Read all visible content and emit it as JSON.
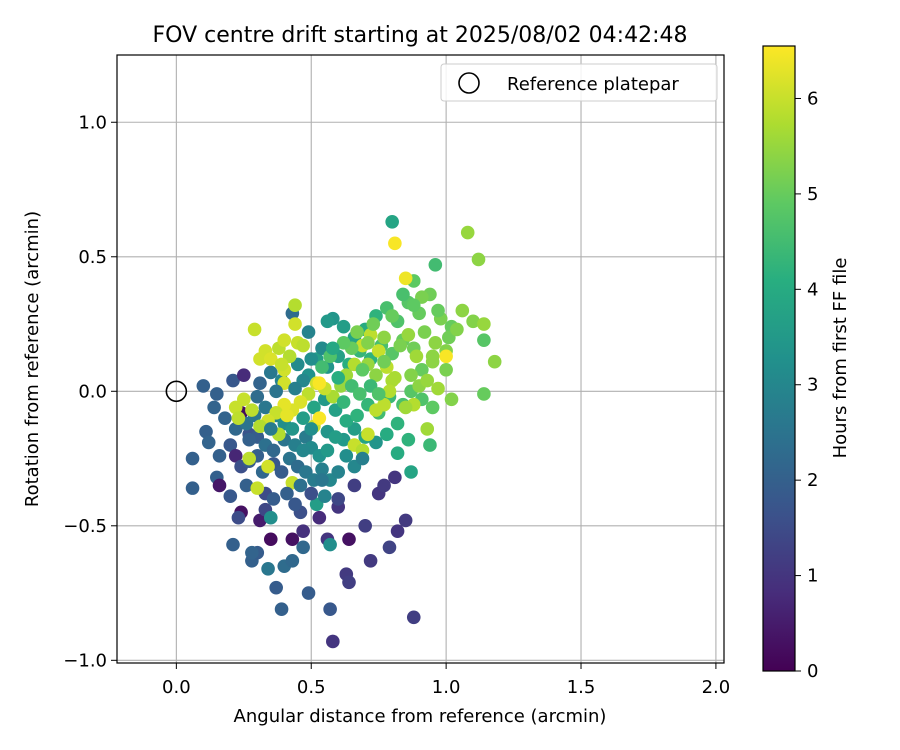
{
  "chart_data": {
    "type": "scatter",
    "title": "FOV centre drift starting at 2025/08/02 04:42:48",
    "xlabel": "Angular distance from reference (arcmin)",
    "ylabel": "Rotation from reference (arcmin)",
    "xlim": [
      -0.22,
      2.03
    ],
    "ylim": [
      -1.01,
      1.25
    ],
    "xticks": [
      0.0,
      0.5,
      1.0,
      1.5,
      2.0
    ],
    "xtick_labels": [
      "0.0",
      "0.5",
      "1.0",
      "1.5",
      "2.0"
    ],
    "yticks": [
      -1.0,
      -0.5,
      0.0,
      0.5,
      1.0
    ],
    "ytick_labels": [
      "−1.0",
      "−0.5",
      "0.0",
      "0.5",
      "1.0"
    ],
    "grid": true,
    "legend": {
      "placement": "top-right",
      "entries": [
        "Reference platepar"
      ]
    },
    "reference_point": {
      "x": 0.0,
      "y": 0.0
    },
    "colorbar": {
      "label": "Hours from first FF file",
      "range": [
        0,
        6.55
      ],
      "ticks": [
        0,
        1,
        2,
        3,
        4,
        5,
        6
      ],
      "tick_labels": [
        "0",
        "1",
        "2",
        "3",
        "4",
        "5",
        "6"
      ],
      "colormap": "viridis"
    },
    "points": [
      [
        0.24,
        -0.08,
        0.2
      ],
      [
        0.24,
        -0.45,
        0.3
      ],
      [
        0.23,
        -0.47,
        1.5
      ],
      [
        0.43,
        -0.55,
        0.3
      ],
      [
        0.35,
        -0.55,
        0.2
      ],
      [
        0.31,
        -0.48,
        0.5
      ],
      [
        0.58,
        -0.93,
        1.0
      ],
      [
        0.88,
        -0.84,
        1.2
      ],
      [
        0.57,
        -0.81,
        1.8
      ],
      [
        0.49,
        -0.75,
        1.9
      ],
      [
        0.39,
        -0.81,
        2.0
      ],
      [
        0.63,
        -0.68,
        1.1
      ],
      [
        0.64,
        -0.71,
        1.2
      ],
      [
        0.72,
        -0.63,
        1.1
      ],
      [
        0.79,
        -0.58,
        1.3
      ],
      [
        0.82,
        -0.52,
        1.0
      ],
      [
        0.85,
        -0.48,
        1.1
      ],
      [
        0.56,
        -0.55,
        1.0
      ],
      [
        0.64,
        -0.55,
        0.3
      ],
      [
        0.7,
        -0.5,
        1.2
      ],
      [
        0.47,
        -0.52,
        0.9
      ],
      [
        0.53,
        -0.47,
        0.8
      ],
      [
        0.6,
        -0.43,
        1.0
      ],
      [
        0.75,
        -0.38,
        1.0
      ],
      [
        0.77,
        -0.35,
        1.1
      ],
      [
        0.81,
        -0.32,
        1.0
      ],
      [
        0.87,
        -0.3,
        3.8
      ],
      [
        0.82,
        -0.23,
        4.0
      ],
      [
        0.86,
        -0.18,
        4.2
      ],
      [
        0.94,
        -0.2,
        4.4
      ],
      [
        0.21,
        -0.57,
        2.0
      ],
      [
        0.28,
        -0.63,
        2.0
      ],
      [
        0.3,
        -0.6,
        1.9
      ],
      [
        0.34,
        -0.66,
        2.6
      ],
      [
        0.4,
        -0.65,
        2.3
      ],
      [
        0.43,
        -0.63,
        2.2
      ],
      [
        0.47,
        -0.58,
        2.2
      ],
      [
        0.57,
        -0.57,
        3.2
      ],
      [
        0.37,
        -0.73,
        1.9
      ],
      [
        0.28,
        -0.6,
        2.1
      ],
      [
        0.06,
        -0.36,
        2.0
      ],
      [
        0.06,
        -0.25,
        2.0
      ],
      [
        0.15,
        -0.32,
        2.0
      ],
      [
        0.16,
        -0.35,
        0.4
      ],
      [
        0.2,
        -0.39,
        1.8
      ],
      [
        0.26,
        -0.35,
        2.0
      ],
      [
        0.33,
        -0.38,
        1.5
      ],
      [
        0.33,
        -0.44,
        1.4
      ],
      [
        0.35,
        -0.47,
        3.2
      ],
      [
        0.46,
        -0.45,
        1.6
      ],
      [
        0.52,
        -0.42,
        3.6
      ],
      [
        0.55,
        -0.39,
        2.9
      ],
      [
        0.6,
        -0.4,
        1.4
      ],
      [
        0.66,
        -0.35,
        1.2
      ],
      [
        0.11,
        -0.15,
        2.0
      ],
      [
        0.12,
        -0.19,
        2.1
      ],
      [
        0.16,
        -0.24,
        2.0
      ],
      [
        0.2,
        -0.2,
        1.8
      ],
      [
        0.22,
        -0.24,
        0.7
      ],
      [
        0.24,
        -0.28,
        1.6
      ],
      [
        0.27,
        -0.26,
        1.9
      ],
      [
        0.3,
        -0.24,
        2.0
      ],
      [
        0.32,
        -0.3,
        2.2
      ],
      [
        0.36,
        -0.27,
        1.8
      ],
      [
        0.39,
        -0.3,
        1.9
      ],
      [
        0.42,
        -0.25,
        2.5
      ],
      [
        0.45,
        -0.28,
        2.3
      ],
      [
        0.48,
        -0.3,
        2.6
      ],
      [
        0.51,
        -0.33,
        2.7
      ],
      [
        0.54,
        -0.29,
        2.8
      ],
      [
        0.57,
        -0.33,
        3.0
      ],
      [
        0.6,
        -0.3,
        2.9
      ],
      [
        0.27,
        -0.16,
        1.7
      ],
      [
        0.3,
        -0.17,
        1.9
      ],
      [
        0.33,
        -0.2,
        2.4
      ],
      [
        0.36,
        -0.22,
        2.2
      ],
      [
        0.4,
        -0.18,
        2.5
      ],
      [
        0.44,
        -0.2,
        2.8
      ],
      [
        0.48,
        -0.17,
        2.7
      ],
      [
        0.5,
        -0.21,
        3.1
      ],
      [
        0.53,
        -0.24,
        3.3
      ],
      [
        0.56,
        -0.22,
        3.5
      ],
      [
        0.62,
        -0.18,
        3.5
      ],
      [
        0.66,
        -0.14,
        3.6
      ],
      [
        0.7,
        -0.17,
        3.8
      ],
      [
        0.74,
        -0.19,
        3.4
      ],
      [
        0.78,
        -0.16,
        4.0
      ],
      [
        0.82,
        -0.12,
        4.2
      ],
      [
        0.14,
        -0.06,
        2.1
      ],
      [
        0.18,
        -0.1,
        2.1
      ],
      [
        0.22,
        -0.14,
        2.2
      ],
      [
        0.26,
        -0.12,
        2.5
      ],
      [
        0.29,
        -0.09,
        2.6
      ],
      [
        0.33,
        -0.06,
        2.6
      ],
      [
        0.37,
        -0.09,
        2.9
      ],
      [
        0.4,
        -0.12,
        3.2
      ],
      [
        0.43,
        -0.14,
        3.4
      ],
      [
        0.47,
        -0.1,
        3.6
      ],
      [
        0.51,
        -0.06,
        3.8
      ],
      [
        0.55,
        -0.03,
        3.5
      ],
      [
        0.59,
        -0.07,
        3.7
      ],
      [
        0.63,
        -0.11,
        4.0
      ],
      [
        0.67,
        -0.09,
        4.2
      ],
      [
        0.71,
        -0.05,
        4.3
      ],
      [
        0.75,
        -0.08,
        4.5
      ],
      [
        0.79,
        -0.02,
        4.4
      ],
      [
        0.84,
        -0.05,
        4.6
      ],
      [
        0.87,
        0.0,
        4.8
      ],
      [
        0.91,
        -0.03,
        4.7
      ],
      [
        0.95,
        -0.06,
        4.9
      ],
      [
        0.1,
        0.02,
        2.0
      ],
      [
        0.15,
        -0.01,
        2.0
      ],
      [
        0.21,
        0.04,
        1.8
      ],
      [
        0.25,
        0.06,
        0.8
      ],
      [
        0.31,
        0.03,
        2.1
      ],
      [
        0.35,
        0.07,
        2.6
      ],
      [
        0.39,
        0.04,
        2.9
      ],
      [
        0.45,
        0.1,
        3.1
      ],
      [
        0.49,
        0.06,
        3.3
      ],
      [
        0.52,
        0.12,
        3.6
      ],
      [
        0.56,
        0.09,
        3.4
      ],
      [
        0.6,
        0.13,
        3.7
      ],
      [
        0.64,
        0.1,
        4.1
      ],
      [
        0.68,
        0.15,
        4.3
      ],
      [
        0.72,
        0.12,
        4.2
      ],
      [
        0.76,
        0.17,
        4.6
      ],
      [
        0.8,
        0.14,
        4.8
      ],
      [
        0.84,
        0.19,
        5.0
      ],
      [
        0.88,
        0.16,
        5.1
      ],
      [
        0.92,
        0.22,
        5.2
      ],
      [
        0.96,
        0.18,
        5.4
      ],
      [
        1.0,
        0.15,
        5.3
      ],
      [
        0.43,
        0.29,
        2.3
      ],
      [
        0.49,
        0.22,
        2.9
      ],
      [
        0.54,
        0.16,
        3.1
      ],
      [
        0.58,
        0.27,
        3.4
      ],
      [
        0.62,
        0.24,
        3.6
      ],
      [
        0.66,
        0.2,
        3.8
      ],
      [
        0.7,
        0.23,
        4.0
      ],
      [
        0.74,
        0.28,
        4.2
      ],
      [
        0.78,
        0.31,
        4.6
      ],
      [
        0.82,
        0.26,
        4.7
      ],
      [
        0.86,
        0.33,
        4.8
      ],
      [
        0.9,
        0.29,
        5.0
      ],
      [
        0.94,
        0.36,
        5.1
      ],
      [
        0.98,
        0.27,
        5.2
      ],
      [
        1.02,
        0.24,
        5.0
      ],
      [
        1.06,
        0.3,
        5.4
      ],
      [
        1.1,
        0.26,
        5.3
      ],
      [
        1.14,
        0.19,
        4.8
      ],
      [
        1.18,
        0.11,
        5.4
      ],
      [
        1.14,
        0.25,
        5.5
      ],
      [
        0.88,
        0.41,
        4.9
      ],
      [
        0.84,
        0.36,
        4.6
      ],
      [
        0.96,
        0.47,
        4.5
      ],
      [
        1.12,
        0.49,
        5.4
      ],
      [
        1.08,
        0.59,
        5.5
      ],
      [
        0.8,
        0.63,
        3.8
      ],
      [
        0.81,
        0.55,
        6.5
      ],
      [
        0.85,
        0.42,
        6.4
      ],
      [
        1.0,
        0.13,
        6.5
      ],
      [
        0.95,
        0.13,
        5.4
      ],
      [
        1.02,
        -0.03,
        5.3
      ],
      [
        1.0,
        0.08,
        5.2
      ],
      [
        0.91,
        0.08,
        5.0
      ],
      [
        0.95,
        0.11,
        5.4
      ],
      [
        1.14,
        -0.01,
        5.0
      ],
      [
        0.93,
        -0.14,
        5.6
      ],
      [
        0.88,
        -0.05,
        5.8
      ],
      [
        0.8,
        0.04,
        5.7
      ],
      [
        0.78,
        0.09,
        5.9
      ],
      [
        0.75,
        0.15,
        6.0
      ],
      [
        0.72,
        0.21,
        5.9
      ],
      [
        0.69,
        0.17,
        6.0
      ],
      [
        0.66,
        0.1,
        5.8
      ],
      [
        0.63,
        0.06,
        5.6
      ],
      [
        0.61,
        0.02,
        5.5
      ],
      [
        0.58,
        -0.02,
        5.7
      ],
      [
        0.55,
        0.01,
        6.0
      ],
      [
        0.52,
        0.03,
        6.1
      ],
      [
        0.49,
        -0.01,
        5.9
      ],
      [
        0.46,
        -0.04,
        6.2
      ],
      [
        0.43,
        -0.07,
        6.2
      ],
      [
        0.4,
        -0.05,
        6.3
      ],
      [
        0.37,
        -0.08,
        6.0
      ],
      [
        0.34,
        -0.11,
        6.1
      ],
      [
        0.31,
        -0.13,
        5.8
      ],
      [
        0.28,
        -0.07,
        5.9
      ],
      [
        0.25,
        -0.03,
        6.0
      ],
      [
        0.22,
        -0.06,
        6.0
      ],
      [
        0.23,
        -0.1,
        5.9
      ],
      [
        0.29,
        0.23,
        6.0
      ],
      [
        0.31,
        0.12,
        6.1
      ],
      [
        0.33,
        0.15,
        6.1
      ],
      [
        0.35,
        0.12,
        6.2
      ],
      [
        0.38,
        0.16,
        5.9
      ],
      [
        0.4,
        0.19,
        6.1
      ],
      [
        0.42,
        0.13,
        5.8
      ],
      [
        0.44,
        0.25,
        6.1
      ],
      [
        0.45,
        0.18,
        6.0
      ],
      [
        0.47,
        0.17,
        5.9
      ],
      [
        0.44,
        0.32,
        5.8
      ],
      [
        0.4,
        0.08,
        6.1
      ],
      [
        0.4,
        0.03,
        6.1
      ],
      [
        0.39,
        0.1,
        6.0
      ],
      [
        0.41,
        -0.09,
        6.3
      ],
      [
        0.38,
        -0.16,
        5.8
      ],
      [
        0.34,
        -0.28,
        6.1
      ],
      [
        0.3,
        -0.36,
        6.0
      ],
      [
        0.27,
        -0.25,
        5.9
      ],
      [
        0.43,
        -0.34,
        6.0
      ],
      [
        0.51,
        -0.13,
        6.0
      ],
      [
        0.53,
        -0.1,
        6.5
      ],
      [
        0.53,
        0.03,
        6.5
      ],
      [
        0.66,
        -0.2,
        6.0
      ],
      [
        0.69,
        -0.22,
        5.8
      ],
      [
        0.71,
        -0.16,
        6.0
      ],
      [
        0.74,
        -0.07,
        5.9
      ],
      [
        0.77,
        -0.05,
        5.9
      ],
      [
        0.79,
        0.0,
        5.8
      ],
      [
        0.81,
        0.05,
        5.7
      ],
      [
        0.85,
        -0.06,
        5.6
      ],
      [
        0.87,
        0.06,
        5.3
      ],
      [
        0.9,
        0.02,
        5.4
      ],
      [
        0.93,
        0.04,
        5.5
      ],
      [
        0.97,
        0.01,
        5.6
      ],
      [
        0.71,
        0.1,
        5.5
      ],
      [
        0.74,
        0.06,
        5.4
      ],
      [
        0.77,
        0.11,
        5.1
      ],
      [
        0.83,
        0.17,
        5.2
      ],
      [
        0.86,
        0.21,
        5.5
      ],
      [
        0.89,
        0.13,
        5.6
      ],
      [
        0.65,
        0.16,
        5.0
      ],
      [
        0.69,
        0.08,
        4.9
      ],
      [
        0.57,
        0.13,
        4.7
      ],
      [
        0.54,
        0.09,
        4.5
      ],
      [
        0.62,
        0.18,
        4.9
      ],
      [
        0.67,
        0.22,
        5.2
      ],
      [
        0.71,
        0.18,
        5.3
      ],
      [
        0.73,
        0.25,
        5.1
      ],
      [
        0.77,
        0.2,
        5.4
      ],
      [
        0.8,
        0.28,
        5.0
      ],
      [
        0.91,
        0.35,
        5.2
      ],
      [
        0.88,
        0.32,
        4.9
      ],
      [
        0.97,
        0.3,
        5.0
      ],
      [
        1.01,
        0.2,
        5.1
      ],
      [
        1.04,
        0.23,
        5.3
      ],
      [
        0.6,
        0.05,
        4.1
      ],
      [
        0.62,
        -0.04,
        4.3
      ],
      [
        0.65,
        0.02,
        4.5
      ],
      [
        0.68,
        -0.01,
        4.6
      ],
      [
        0.72,
        0.02,
        4.4
      ],
      [
        0.75,
        -0.01,
        4.7
      ],
      [
        0.58,
        0.16,
        3.9
      ],
      [
        0.56,
        0.26,
        3.5
      ],
      [
        0.5,
        0.12,
        3.2
      ],
      [
        0.47,
        0.04,
        3.0
      ],
      [
        0.44,
        0.01,
        2.8
      ],
      [
        0.37,
        0.0,
        2.5
      ],
      [
        0.3,
        -0.02,
        2.3
      ],
      [
        0.27,
        -0.18,
        2.0
      ],
      [
        0.35,
        -0.14,
        2.7
      ],
      [
        0.47,
        -0.22,
        3.0
      ],
      [
        0.5,
        -0.14,
        3.2
      ],
      [
        0.56,
        -0.15,
        3.4
      ],
      [
        0.59,
        -0.17,
        3.6
      ],
      [
        0.63,
        -0.24,
        3.2
      ],
      [
        0.66,
        -0.28,
        3.0
      ],
      [
        0.69,
        -0.25,
        2.8
      ],
      [
        0.46,
        -0.35,
        2.4
      ],
      [
        0.41,
        -0.38,
        2.0
      ],
      [
        0.36,
        -0.4,
        1.9
      ],
      [
        0.44,
        -0.42,
        1.8
      ],
      [
        0.5,
        -0.38,
        1.6
      ],
      [
        0.54,
        -0.33,
        2.6
      ]
    ]
  }
}
